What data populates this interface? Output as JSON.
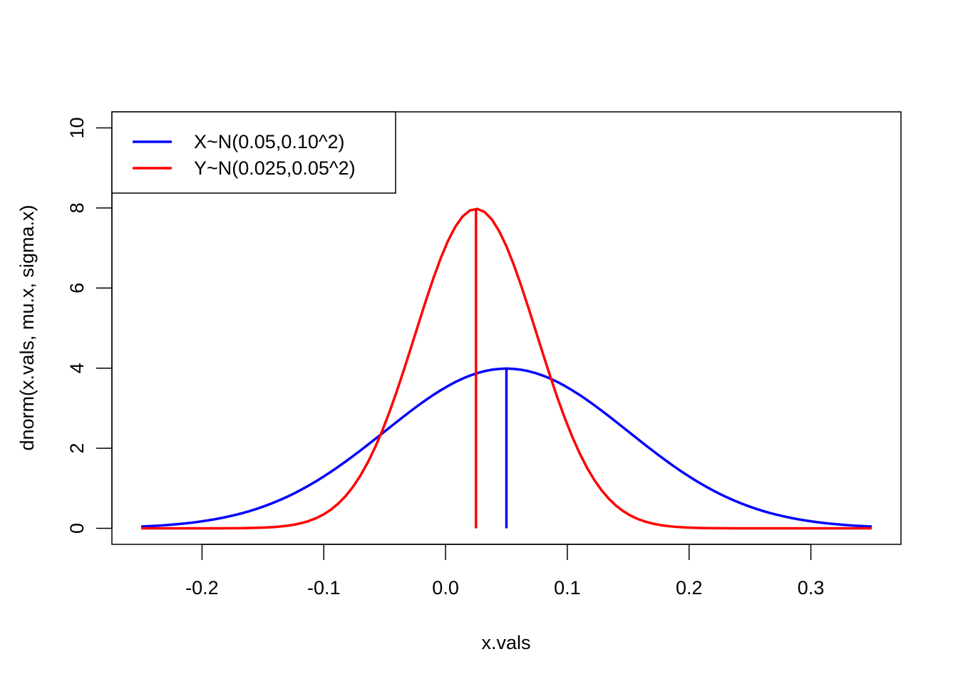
{
  "chart_data": {
    "type": "line",
    "title": "",
    "xlabel": "x.vals",
    "ylabel": "dnorm(x.vals, mu.x, sigma.x)",
    "xlim": [
      -0.274,
      0.374
    ],
    "ylim": [
      -0.4,
      10.4
    ],
    "x_ticks": [
      "-0.2",
      "-0.1",
      "0.0",
      "0.1",
      "0.2",
      "0.3"
    ],
    "y_ticks": [
      "0",
      "2",
      "4",
      "6",
      "8",
      "10"
    ],
    "x_range": [
      -0.25,
      0.35
    ],
    "grid": false,
    "legend_position": "top-left",
    "series": [
      {
        "name": "X~N(0.05,0.10^2)",
        "color": "#0000ff",
        "mean": 0.05,
        "sd": 0.1,
        "mean_line": [
          [
            0.05,
            0
          ],
          [
            0.05,
            3.99
          ]
        ]
      },
      {
        "name": "Y~N(0.025,0.05^2)",
        "color": "#ff0000",
        "mean": 0.025,
        "sd": 0.05,
        "mean_line": [
          [
            0.025,
            0
          ],
          [
            0.025,
            7.98
          ]
        ]
      }
    ]
  }
}
